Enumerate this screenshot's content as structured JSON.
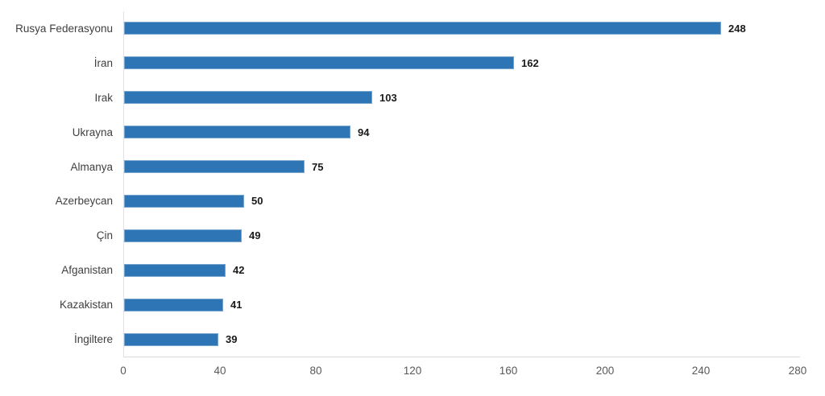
{
  "chart_data": {
    "type": "bar",
    "orientation": "horizontal",
    "title": "",
    "xlabel": "",
    "ylabel": "",
    "categories": [
      "Rusya Federasyonu",
      "İran",
      "Irak",
      "Ukrayna",
      "Almanya",
      "Azerbeycan",
      "Çin",
      "Afganistan",
      "Kazakistan",
      "İngiltere"
    ],
    "values": [
      248,
      162,
      103,
      94,
      75,
      50,
      49,
      42,
      41,
      39
    ],
    "x_ticks": [
      "0",
      "40",
      "80",
      "120",
      "160",
      "200",
      "240",
      "280"
    ],
    "x_tick_values": [
      0,
      40,
      80,
      120,
      160,
      200,
      240,
      280
    ],
    "xlim": [
      0,
      280
    ],
    "grid": false,
    "data_labels": true,
    "legend": false,
    "colors": {
      "bar_fill": "#2e75b6",
      "axis_line": "#d9d9d9",
      "category_label": "#404040",
      "value_label": "#1a1a1a",
      "tick_label": "#595959",
      "background": "#ffffff"
    }
  }
}
